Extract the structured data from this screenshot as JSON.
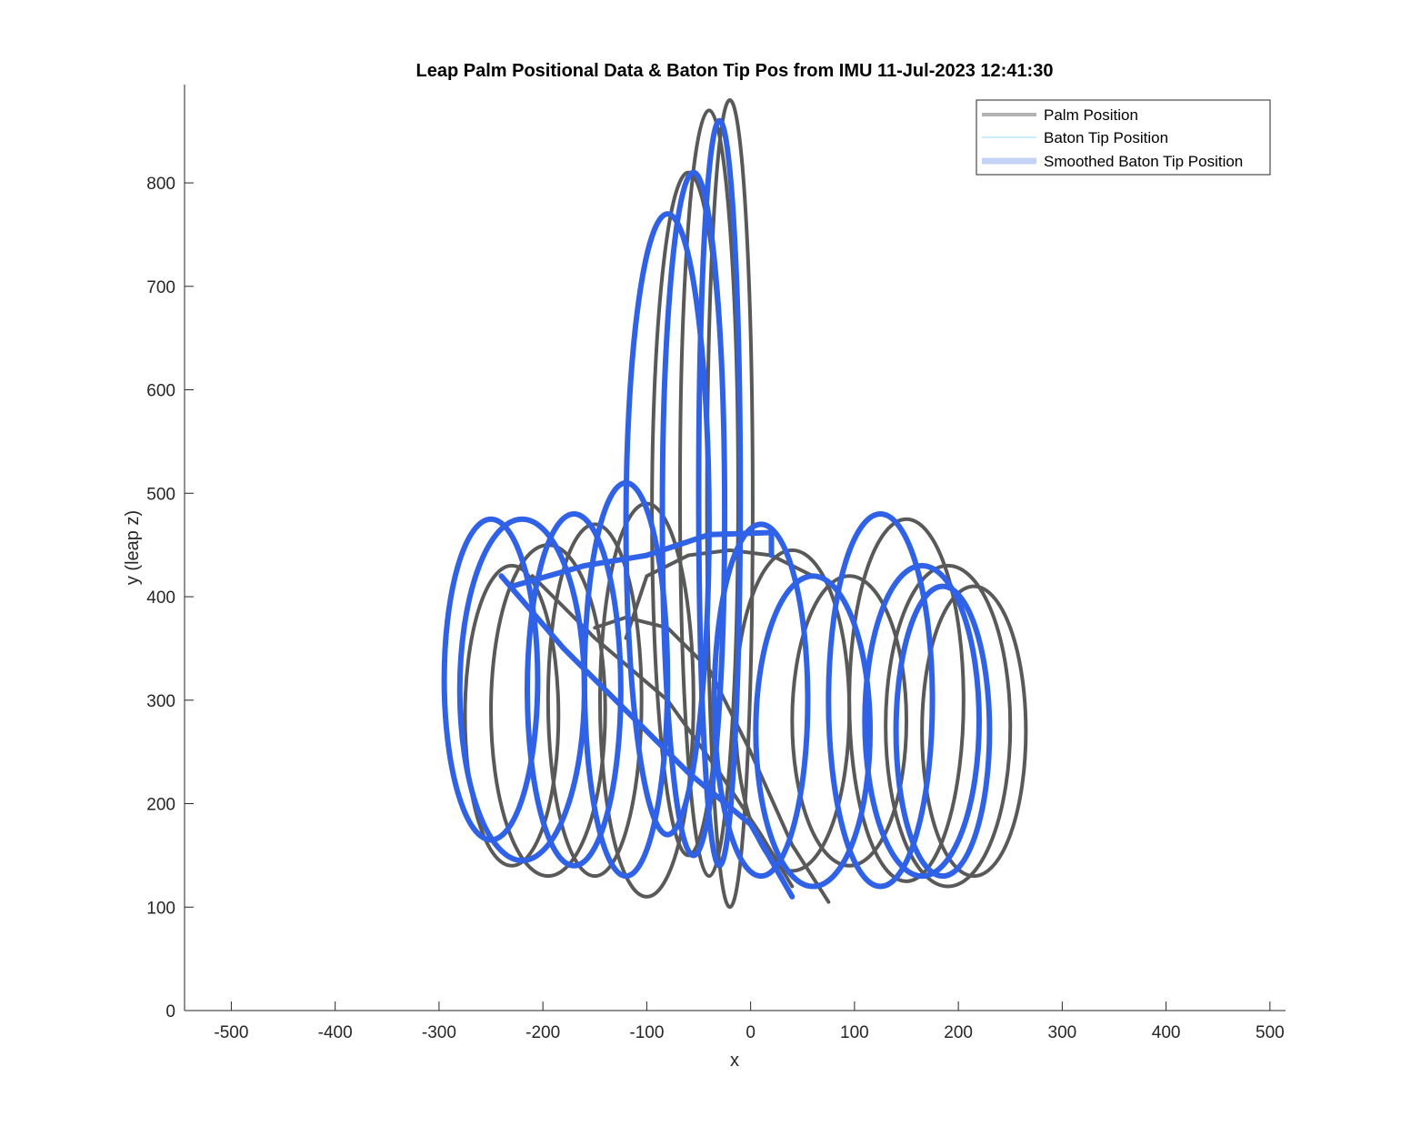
{
  "chart_data": {
    "type": "line",
    "title": "Leap Palm Positional Data & Baton Tip Pos from IMU 11-Jul-2023 12:41:30",
    "xlabel": "x",
    "ylabel": "y (leap z)",
    "xlim": [
      -545,
      515
    ],
    "ylim": [
      0,
      895
    ],
    "x_ticks": [
      -500,
      -400,
      -300,
      -200,
      -100,
      0,
      100,
      200,
      300,
      400,
      500
    ],
    "y_ticks": [
      0,
      100,
      200,
      300,
      400,
      500,
      600,
      700,
      800
    ],
    "grid": false,
    "legend_position": "top-right",
    "series": [
      {
        "name": "Palm Position",
        "color": "#595959",
        "loops": [
          {
            "cx": 215,
            "cy": 270,
            "rx": 50,
            "ry": 140
          },
          {
            "cx": 190,
            "cy": 275,
            "rx": 60,
            "ry": 155
          },
          {
            "cx": 150,
            "cy": 300,
            "rx": 55,
            "ry": 175
          },
          {
            "cx": 95,
            "cy": 280,
            "rx": 55,
            "ry": 140
          },
          {
            "cx": 40,
            "cy": 290,
            "rx": 55,
            "ry": 155
          },
          {
            "cx": -20,
            "cy": 490,
            "rx": 22,
            "ry": 390
          },
          {
            "cx": -40,
            "cy": 500,
            "rx": 28,
            "ry": 370
          },
          {
            "cx": -60,
            "cy": 480,
            "rx": 35,
            "ry": 330
          },
          {
            "cx": -100,
            "cy": 300,
            "rx": 45,
            "ry": 190
          },
          {
            "cx": -150,
            "cy": 300,
            "rx": 45,
            "ry": 170
          },
          {
            "cx": -195,
            "cy": 290,
            "rx": 55,
            "ry": 160
          },
          {
            "cx": -230,
            "cy": 285,
            "rx": 45,
            "ry": 145
          }
        ],
        "strokes": [
          [
            [
              75,
              105
            ],
            [
              40,
              160
            ],
            [
              0,
              250
            ],
            [
              -40,
              330
            ],
            [
              -80,
              370
            ],
            [
              -120,
              380
            ],
            [
              -150,
              370
            ]
          ],
          [
            [
              -210,
              420
            ],
            [
              -150,
              360
            ],
            [
              -80,
              300
            ],
            [
              -30,
              230
            ],
            [
              10,
              170
            ],
            [
              40,
              120
            ]
          ],
          [
            [
              -120,
              360
            ],
            [
              -100,
              420
            ],
            [
              -60,
              440
            ],
            [
              -20,
              445
            ],
            [
              20,
              440
            ],
            [
              60,
              420
            ]
          ]
        ]
      },
      {
        "name": "Baton Tip Position",
        "color": "#17b4e8",
        "loops": [
          {
            "cx": 185,
            "cy": 270,
            "rx": 45,
            "ry": 140
          },
          {
            "cx": 165,
            "cy": 280,
            "rx": 55,
            "ry": 150
          },
          {
            "cx": 125,
            "cy": 300,
            "rx": 50,
            "ry": 180
          },
          {
            "cx": 60,
            "cy": 270,
            "rx": 55,
            "ry": 150
          },
          {
            "cx": 10,
            "cy": 300,
            "rx": 45,
            "ry": 170
          },
          {
            "cx": -30,
            "cy": 500,
            "rx": 20,
            "ry": 360
          },
          {
            "cx": -55,
            "cy": 480,
            "rx": 30,
            "ry": 330
          },
          {
            "cx": -80,
            "cy": 470,
            "rx": 40,
            "ry": 300
          },
          {
            "cx": -120,
            "cy": 320,
            "rx": 40,
            "ry": 190
          },
          {
            "cx": -170,
            "cy": 310,
            "rx": 45,
            "ry": 170
          },
          {
            "cx": -220,
            "cy": 310,
            "rx": 60,
            "ry": 165
          },
          {
            "cx": -250,
            "cy": 320,
            "rx": 45,
            "ry": 155
          }
        ],
        "strokes": [
          [
            [
              -240,
              420
            ],
            [
              -180,
              350
            ],
            [
              -120,
              290
            ],
            [
              -60,
              230
            ],
            [
              0,
              180
            ],
            [
              40,
              110
            ]
          ],
          [
            [
              -230,
              410
            ],
            [
              -160,
              430
            ],
            [
              -100,
              440
            ],
            [
              -40,
              460
            ],
            [
              20,
              462
            ],
            [
              20,
              440
            ]
          ]
        ]
      },
      {
        "name": "Smoothed Baton Tip Position",
        "color": "#2f62e6",
        "loops": [
          {
            "cx": 185,
            "cy": 270,
            "rx": 45,
            "ry": 140
          },
          {
            "cx": 165,
            "cy": 280,
            "rx": 55,
            "ry": 150
          },
          {
            "cx": 125,
            "cy": 300,
            "rx": 50,
            "ry": 180
          },
          {
            "cx": 60,
            "cy": 270,
            "rx": 55,
            "ry": 150
          },
          {
            "cx": 10,
            "cy": 300,
            "rx": 45,
            "ry": 170
          },
          {
            "cx": -30,
            "cy": 500,
            "rx": 20,
            "ry": 360
          },
          {
            "cx": -55,
            "cy": 480,
            "rx": 30,
            "ry": 330
          },
          {
            "cx": -80,
            "cy": 470,
            "rx": 40,
            "ry": 300
          },
          {
            "cx": -120,
            "cy": 320,
            "rx": 40,
            "ry": 190
          },
          {
            "cx": -170,
            "cy": 310,
            "rx": 45,
            "ry": 170
          },
          {
            "cx": -220,
            "cy": 310,
            "rx": 60,
            "ry": 165
          },
          {
            "cx": -250,
            "cy": 320,
            "rx": 45,
            "ry": 155
          }
        ],
        "strokes": [
          [
            [
              -240,
              420
            ],
            [
              -180,
              350
            ],
            [
              -120,
              290
            ],
            [
              -60,
              230
            ],
            [
              0,
              180
            ],
            [
              40,
              110
            ]
          ],
          [
            [
              -230,
              410
            ],
            [
              -160,
              430
            ],
            [
              -100,
              440
            ],
            [
              -40,
              460
            ],
            [
              20,
              462
            ],
            [
              20,
              440
            ]
          ]
        ]
      }
    ]
  }
}
